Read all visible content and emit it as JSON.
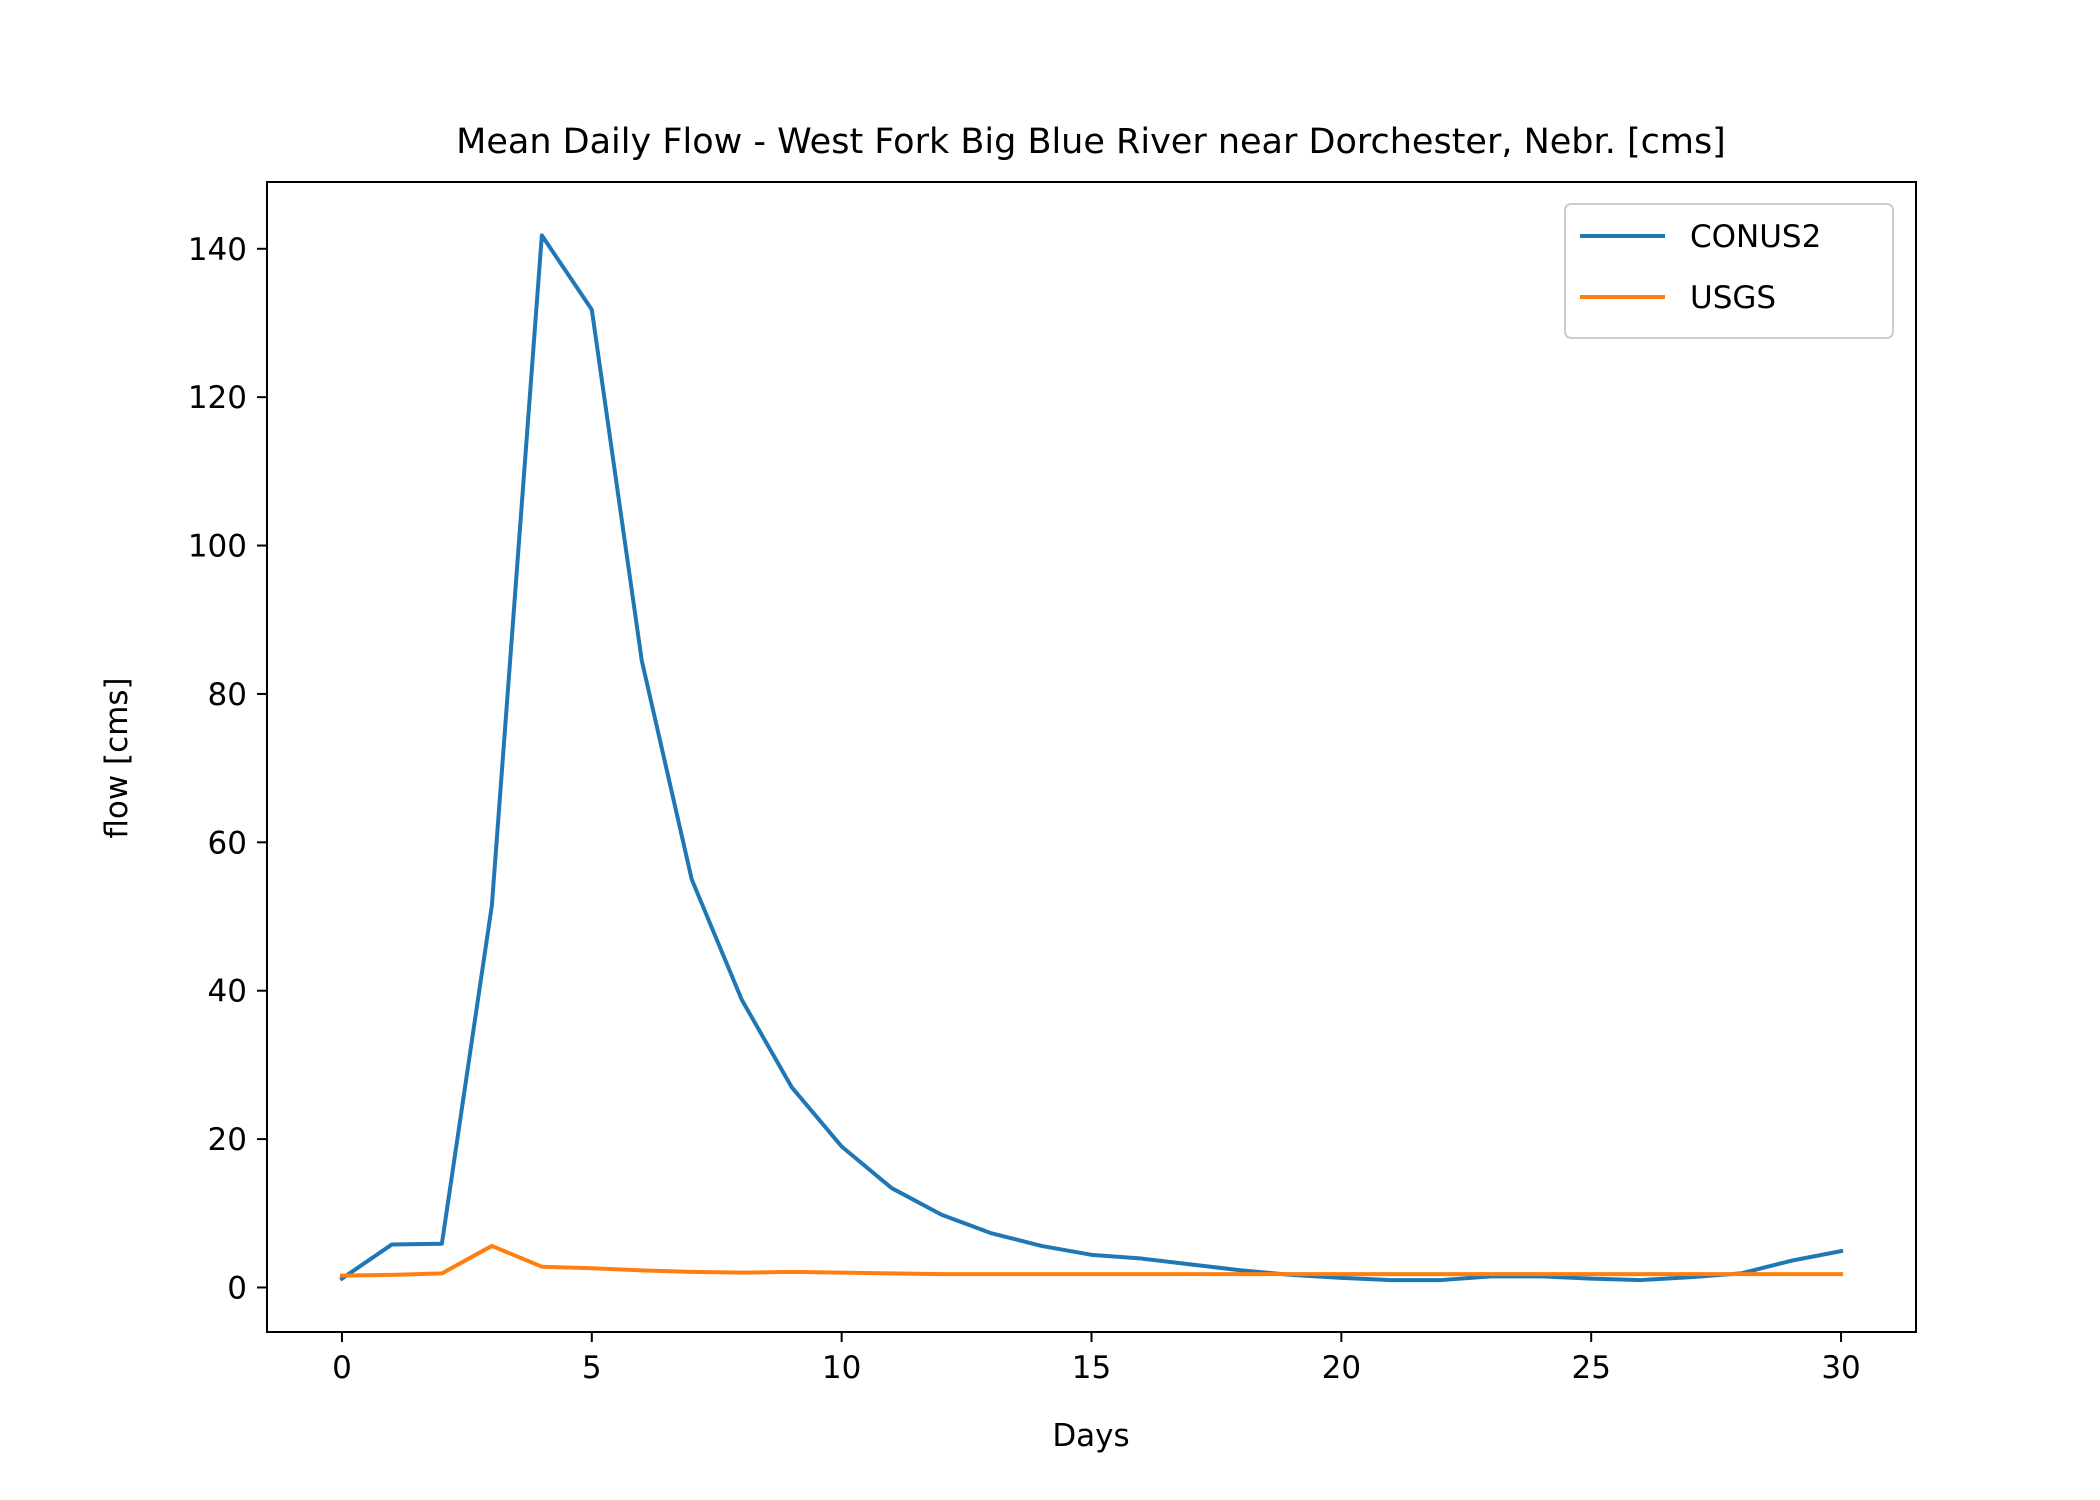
{
  "chart_data": {
    "type": "line",
    "title": "Mean Daily Flow - West Fork Big Blue River near Dorchester, Nebr. [cms]",
    "xlabel": "Days",
    "ylabel": "flow [cms]",
    "xlim": [
      -1.5,
      31.5
    ],
    "ylim": [
      -6,
      149
    ],
    "xticks": [
      0,
      5,
      10,
      15,
      20,
      25,
      30
    ],
    "yticks": [
      0,
      20,
      40,
      60,
      80,
      100,
      120,
      140
    ],
    "grid": false,
    "legend_position": "top-right",
    "x": [
      0,
      1,
      2,
      3,
      4,
      5,
      6,
      7,
      8,
      9,
      10,
      11,
      12,
      13,
      14,
      15,
      16,
      17,
      18,
      19,
      20,
      21,
      22,
      23,
      24,
      25,
      26,
      27,
      28,
      29,
      30
    ],
    "series": [
      {
        "name": "CONUS2",
        "color": "#1f77b4",
        "values": [
          1.2,
          5.8,
          5.9,
          51.5,
          141.8,
          131.8,
          84.5,
          55.0,
          38.8,
          27.0,
          19.0,
          13.4,
          9.8,
          7.3,
          5.6,
          4.4,
          3.9,
          3.1,
          2.3,
          1.7,
          1.3,
          1.0,
          1.0,
          1.5,
          1.5,
          1.2,
          1.0,
          1.4,
          1.9,
          3.6,
          4.9
        ]
      },
      {
        "name": "USGS",
        "color": "#ff7f0e",
        "values": [
          1.6,
          1.7,
          1.9,
          5.6,
          2.8,
          2.6,
          2.3,
          2.1,
          2.0,
          2.1,
          2.0,
          1.9,
          1.8,
          1.8,
          1.8,
          1.8,
          1.8,
          1.8,
          1.8,
          1.8,
          1.8,
          1.8,
          1.8,
          1.8,
          1.8,
          1.8,
          1.8,
          1.8,
          1.8,
          1.8,
          1.8
        ]
      }
    ]
  }
}
